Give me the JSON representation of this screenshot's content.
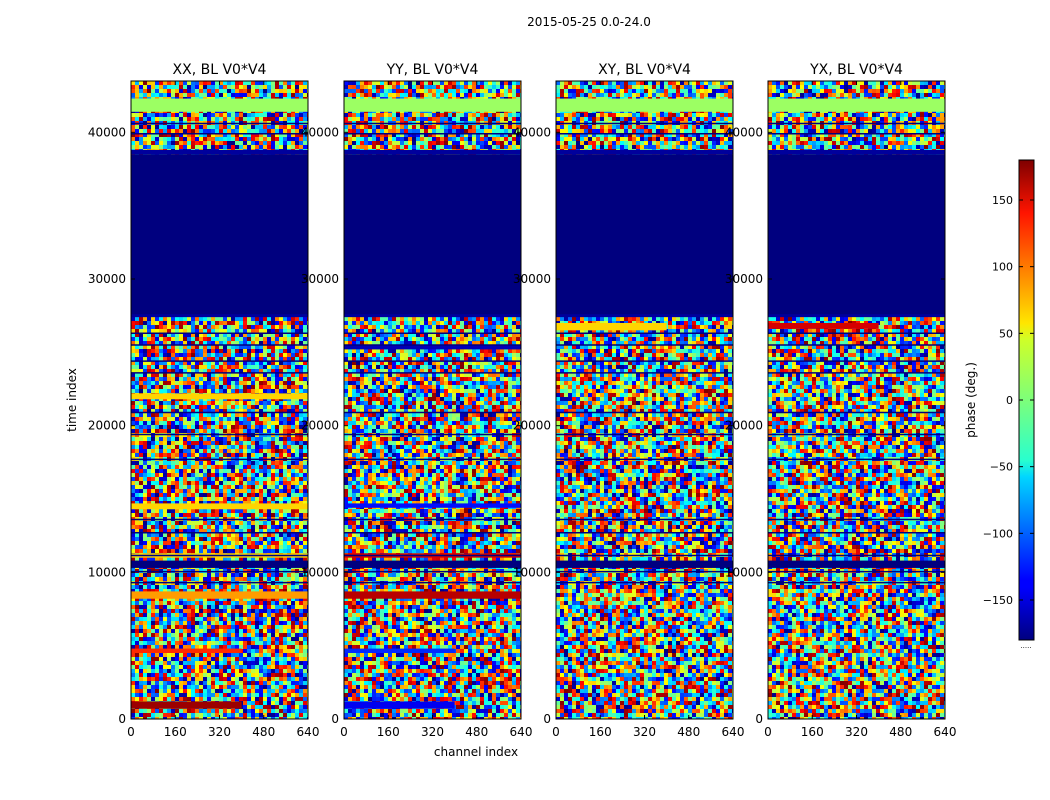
{
  "figure": {
    "suptitle": "2015-05-25 0.0-24.0",
    "xlabel": "channel index",
    "ylabel": "time index"
  },
  "colors": {
    "masked": "#00007f",
    "frame": "#000000",
    "colormap": "jet"
  },
  "chart_data": [
    {
      "type": "heatmap",
      "title": "XX, BL V0*V4",
      "xlabel": "channel index",
      "ylabel": "time index",
      "xlim": [
        0,
        640
      ],
      "ylim": [
        0,
        43500
      ],
      "xticks": [
        0,
        160,
        320,
        480,
        640
      ],
      "yticks": [
        0,
        10000,
        20000,
        30000,
        40000
      ],
      "masked_time_range": [
        27500,
        38500
      ],
      "bands": [
        {
          "t0": 41400,
          "t1": 42300,
          "phase": 10
        },
        {
          "t0": 21800,
          "t1": 22200,
          "phase": 60
        },
        {
          "t0": 14300,
          "t1": 14700,
          "phase": 60
        },
        {
          "t0": 11000,
          "t1": 11300,
          "phase": 60
        },
        {
          "t0": 8200,
          "t1": 8700,
          "phase": 80
        },
        {
          "t0": 4500,
          "t1": 4800,
          "phase": 120,
          "c1": 400
        },
        {
          "t0": 700,
          "t1": 1200,
          "phase": 170,
          "c1": 400
        }
      ]
    },
    {
      "type": "heatmap",
      "title": "YY, BL V0*V4",
      "xlabel": "channel index",
      "ylabel": "",
      "xlim": [
        0,
        640
      ],
      "ylim": [
        0,
        43500
      ],
      "xticks": [
        0,
        160,
        320,
        480,
        640
      ],
      "yticks": [
        0,
        10000,
        20000,
        30000,
        40000
      ],
      "masked_time_range": [
        27500,
        38500
      ],
      "bands": [
        {
          "t0": 41400,
          "t1": 42300,
          "phase": 10
        },
        {
          "t0": 25200,
          "t1": 25500,
          "phase": -160
        },
        {
          "t0": 14400,
          "t1": 14700,
          "phase": -130
        },
        {
          "t0": 11000,
          "t1": 11300,
          "phase": 150
        },
        {
          "t0": 8200,
          "t1": 8700,
          "phase": 160
        },
        {
          "t0": 4500,
          "t1": 4800,
          "phase": -120,
          "c1": 400
        },
        {
          "t0": 700,
          "t1": 1200,
          "phase": -140,
          "c1": 400
        }
      ]
    },
    {
      "type": "heatmap",
      "title": "XY, BL V0*V4",
      "xlabel": "channel index",
      "ylabel": "",
      "xlim": [
        0,
        640
      ],
      "ylim": [
        0,
        43500
      ],
      "xticks": [
        0,
        160,
        320,
        480,
        640
      ],
      "yticks": [
        0,
        10000,
        20000,
        30000,
        40000
      ],
      "masked_time_range": [
        27500,
        38500
      ],
      "bands": [
        {
          "t0": 41400,
          "t1": 42300,
          "phase": 10
        },
        {
          "t0": 26500,
          "t1": 27000,
          "phase": 60,
          "c1": 400
        }
      ]
    },
    {
      "type": "heatmap",
      "title": "YX, BL V0*V4",
      "xlabel": "channel index",
      "ylabel": "",
      "xlim": [
        0,
        640
      ],
      "ylim": [
        0,
        43500
      ],
      "xticks": [
        0,
        160,
        320,
        480,
        640
      ],
      "yticks": [
        0,
        10000,
        20000,
        30000,
        40000
      ],
      "masked_time_range": [
        27500,
        38500
      ],
      "bands": [
        {
          "t0": 41400,
          "t1": 42300,
          "phase": 10
        },
        {
          "t0": 26600,
          "t1": 27000,
          "phase": 150,
          "c1": 400
        }
      ]
    }
  ],
  "common_bands": [
    {
      "t0": 10300,
      "t1": 10800,
      "phase": -180
    },
    {
      "t0": 27400,
      "t1": 27600,
      "phase": -170
    },
    {
      "t0": 38500,
      "t1": 38800,
      "phase": -170
    }
  ],
  "separator_lines": [
    9300,
    10050,
    11150,
    12700,
    13600,
    17700,
    19400,
    20900,
    23600,
    24400,
    25500,
    26300,
    39900,
    40600
  ],
  "colorbar": {
    "label": "phase (deg.)",
    "range": [
      -180,
      180
    ],
    "ticks": [
      150,
      100,
      50,
      0,
      -50,
      -100,
      -150
    ],
    "tick_labels": [
      "150",
      "100",
      "50",
      "0",
      "−50",
      "−100",
      "−150"
    ],
    "footnote": "....."
  }
}
